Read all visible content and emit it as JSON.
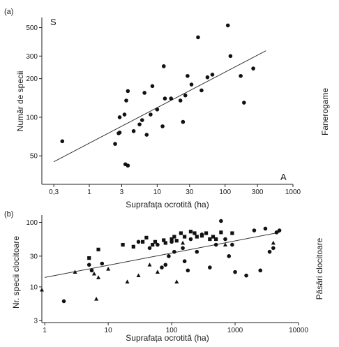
{
  "chart_data": [
    {
      "type": "scatter",
      "panel_label": "(a)",
      "xlabel": "Suprafața ocrotită (ha)",
      "ylabel": "Număr de specii",
      "side_label": "Fanerogame",
      "corner_top_left": "S",
      "corner_bottom_right": "A",
      "x_scale": "log",
      "y_scale": "log",
      "xlim": [
        0.2,
        1000
      ],
      "ylim": [
        30,
        600
      ],
      "x_ticks": [
        0.3,
        1,
        3,
        10,
        30,
        100,
        300,
        1000
      ],
      "x_tick_labels": [
        "0,3",
        "1",
        "3",
        "10",
        "30",
        "100",
        "300",
        "1000"
      ],
      "y_ticks": [
        50,
        100,
        200,
        300,
        500
      ],
      "y_tick_labels": [
        "50",
        "100",
        "200",
        "300",
        "500"
      ],
      "grid": false,
      "series": [
        {
          "marker": "circle",
          "points": [
            [
              0.4,
              65
            ],
            [
              2.4,
              62
            ],
            [
              2.7,
              75
            ],
            [
              2.8,
              76
            ],
            [
              2.8,
              100
            ],
            [
              3.3,
              105
            ],
            [
              3.4,
              43
            ],
            [
              3.5,
              135
            ],
            [
              3.7,
              42
            ],
            [
              3.7,
              160
            ],
            [
              4.5,
              78
            ],
            [
              5.5,
              88
            ],
            [
              6.0,
              95
            ],
            [
              6.5,
              155
            ],
            [
              7.0,
              73
            ],
            [
              8.0,
              105
            ],
            [
              8.5,
              175
            ],
            [
              10,
              115
            ],
            [
              12,
              85
            ],
            [
              12.5,
              250
            ],
            [
              13,
              140
            ],
            [
              16,
              140
            ],
            [
              22,
              135
            ],
            [
              24,
              92
            ],
            [
              26,
              148
            ],
            [
              28,
              210
            ],
            [
              32,
              180
            ],
            [
              40,
              420
            ],
            [
              45,
              162
            ],
            [
              55,
              205
            ],
            [
              65,
              215
            ],
            [
              110,
              520
            ],
            [
              120,
              300
            ],
            [
              170,
              210
            ],
            [
              190,
              130
            ],
            [
              260,
              240
            ]
          ]
        }
      ],
      "fit_line": [
        [
          0.3,
          45
        ],
        [
          400,
          330
        ]
      ]
    },
    {
      "type": "scatter",
      "panel_label": "(b)",
      "xlabel": "Suprafața ocrotită (ha)",
      "ylabel": "Nr. specii clocitoare",
      "side_label": "Păsări clocitoare",
      "x_scale": "log",
      "y_scale": "log",
      "xlim": [
        0.9,
        10000
      ],
      "ylim": [
        2.8,
        130
      ],
      "x_ticks": [
        1,
        10,
        100,
        1000,
        10000
      ],
      "x_tick_labels": [
        "1",
        "10",
        "100",
        "1000",
        "10000"
      ],
      "y_ticks": [
        3,
        10,
        30,
        100
      ],
      "y_tick_labels": [
        "3",
        "10",
        "30",
        "100"
      ],
      "grid": false,
      "series": [
        {
          "marker": "circle",
          "points": [
            [
              2,
              6
            ],
            [
              5,
              22
            ],
            [
              5.5,
              18
            ],
            [
              8,
              23
            ],
            [
              30,
              50
            ],
            [
              45,
              40
            ],
            [
              60,
              45
            ],
            [
              70,
              20
            ],
            [
              80,
              22
            ],
            [
              90,
              30
            ],
            [
              100,
              50
            ],
            [
              110,
              35
            ],
            [
              150,
              40
            ],
            [
              160,
              25
            ],
            [
              180,
              18
            ],
            [
              200,
              55
            ],
            [
              250,
              35
            ],
            [
              300,
              65
            ],
            [
              400,
              20
            ],
            [
              500,
              45
            ],
            [
              600,
              105
            ],
            [
              700,
              55
            ],
            [
              800,
              30
            ],
            [
              900,
              45
            ],
            [
              1000,
              17
            ],
            [
              1500,
              15
            ],
            [
              2000,
              75
            ],
            [
              2500,
              18
            ],
            [
              3000,
              80
            ],
            [
              3500,
              35
            ],
            [
              4000,
              40
            ],
            [
              4500,
              70
            ],
            [
              5000,
              75
            ]
          ]
        },
        {
          "marker": "triangle",
          "points": [
            [
              0.9,
              9
            ],
            [
              3,
              17
            ],
            [
              6,
              16
            ],
            [
              6.5,
              6.5
            ],
            [
              7,
              14
            ],
            [
              10,
              19
            ],
            [
              20,
              12
            ],
            [
              30,
              15
            ],
            [
              45,
              22
            ],
            [
              60,
              17
            ],
            [
              120,
              12
            ],
            [
              150,
              48
            ],
            [
              700,
              45
            ],
            [
              4000,
              48
            ]
          ]
        },
        {
          "marker": "square",
          "points": [
            [
              5,
              28
            ],
            [
              7,
              38
            ],
            [
              17,
              45
            ],
            [
              25,
              42
            ],
            [
              35,
              50
            ],
            [
              40,
              58
            ],
            [
              50,
              45
            ],
            [
              55,
              50
            ],
            [
              75,
              53
            ],
            [
              80,
              48
            ],
            [
              100,
              55
            ],
            [
              110,
              60
            ],
            [
              120,
              52
            ],
            [
              140,
              68
            ],
            [
              160,
              60
            ],
            [
              200,
              72
            ],
            [
              230,
              68
            ],
            [
              250,
              60
            ],
            [
              300,
              62
            ],
            [
              350,
              68
            ],
            [
              400,
              55
            ],
            [
              450,
              60
            ],
            [
              500,
              55
            ],
            [
              600,
              70
            ],
            [
              900,
              68
            ]
          ]
        }
      ],
      "fit_line": [
        [
          1,
          14
        ],
        [
          5000,
          70
        ]
      ]
    }
  ]
}
